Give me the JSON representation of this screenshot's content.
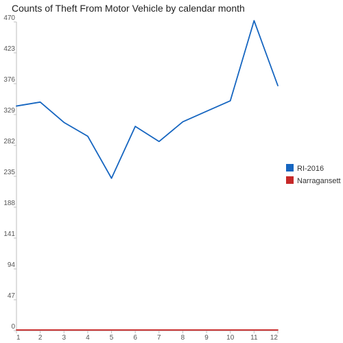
{
  "chart_data": {
    "type": "line",
    "title": "Counts of Theft From Motor Vehicle by calendar month",
    "xlabel": "",
    "ylabel": "",
    "x": [
      1,
      2,
      3,
      4,
      5,
      6,
      7,
      8,
      9,
      10,
      11,
      12
    ],
    "ylim": [
      0,
      470
    ],
    "yticks": [
      0,
      47,
      94,
      141,
      188,
      235,
      282,
      329,
      376,
      423,
      470
    ],
    "grid": false,
    "legend_position": "right",
    "series": [
      {
        "name": "RI-2016",
        "color": "#1565c0",
        "values": [
          342,
          348,
          317,
          296,
          232,
          311,
          288,
          318,
          334,
          350,
          472,
          373
        ]
      },
      {
        "name": "Narragansett",
        "color": "#c62828",
        "values": [
          1,
          1,
          1,
          1,
          1,
          1,
          1,
          1,
          1,
          1,
          1,
          1
        ]
      }
    ]
  }
}
